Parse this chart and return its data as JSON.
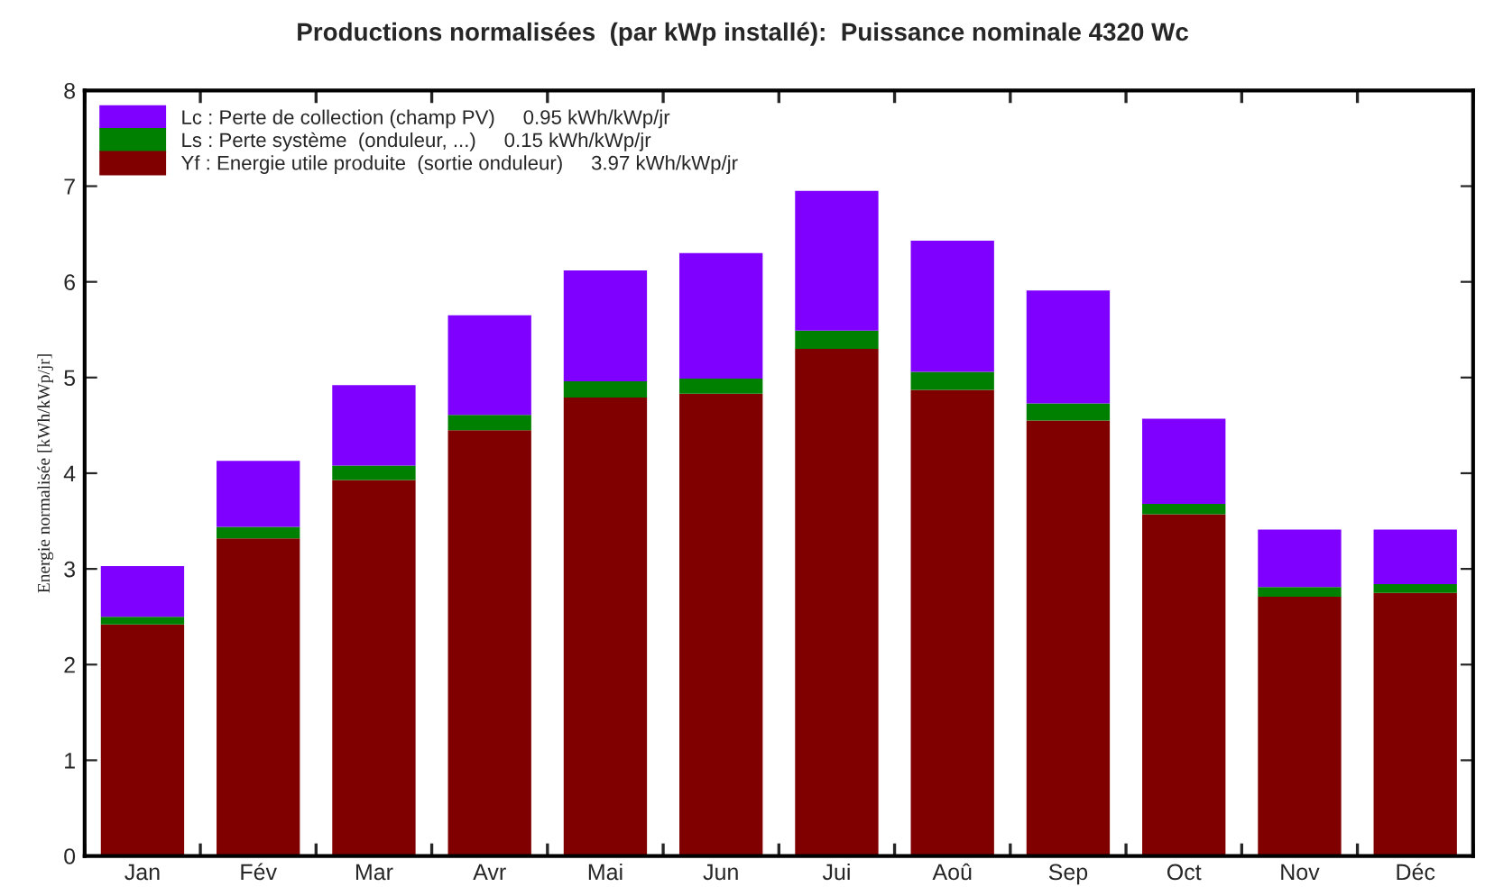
{
  "chart_data": {
    "type": "bar",
    "stacked": true,
    "title": "Productions normalisées  (par kWp installé):  Puissance nominale 4320 Wc",
    "ylabel": "Energie normalisée [kWh/kWp/jr]",
    "categories": [
      "Jan",
      "Fév",
      "Mar",
      "Avr",
      "Mai",
      "Jun",
      "Jui",
      "Aoû",
      "Sep",
      "Oct",
      "Nov",
      "Déc"
    ],
    "series": [
      {
        "name": "Yf : Energie utile produite  (sortie onduleur)     3.97 kWh/kWp/jr",
        "color": "#800000",
        "values": [
          2.42,
          3.32,
          3.93,
          4.45,
          4.79,
          4.83,
          5.3,
          4.87,
          4.55,
          3.57,
          2.71,
          2.75
        ]
      },
      {
        "name": "Ls : Perte système  (onduleur, ...)     0.15 kWh/kWp/jr",
        "color": "#008000",
        "values": [
          0.08,
          0.12,
          0.15,
          0.16,
          0.17,
          0.16,
          0.19,
          0.19,
          0.18,
          0.11,
          0.1,
          0.09
        ]
      },
      {
        "name": "Lc : Perte de collection (champ PV)     0.95 kWh/kWp/jr",
        "color": "#8000ff",
        "values": [
          0.53,
          0.69,
          0.84,
          1.04,
          1.16,
          1.31,
          1.46,
          1.37,
          1.18,
          0.89,
          0.6,
          0.57
        ]
      }
    ],
    "ylim": [
      0,
      8
    ],
    "yticks": [
      0,
      1,
      2,
      3,
      4,
      5,
      6,
      7,
      8
    ],
    "grid": false,
    "legend": "top left"
  }
}
